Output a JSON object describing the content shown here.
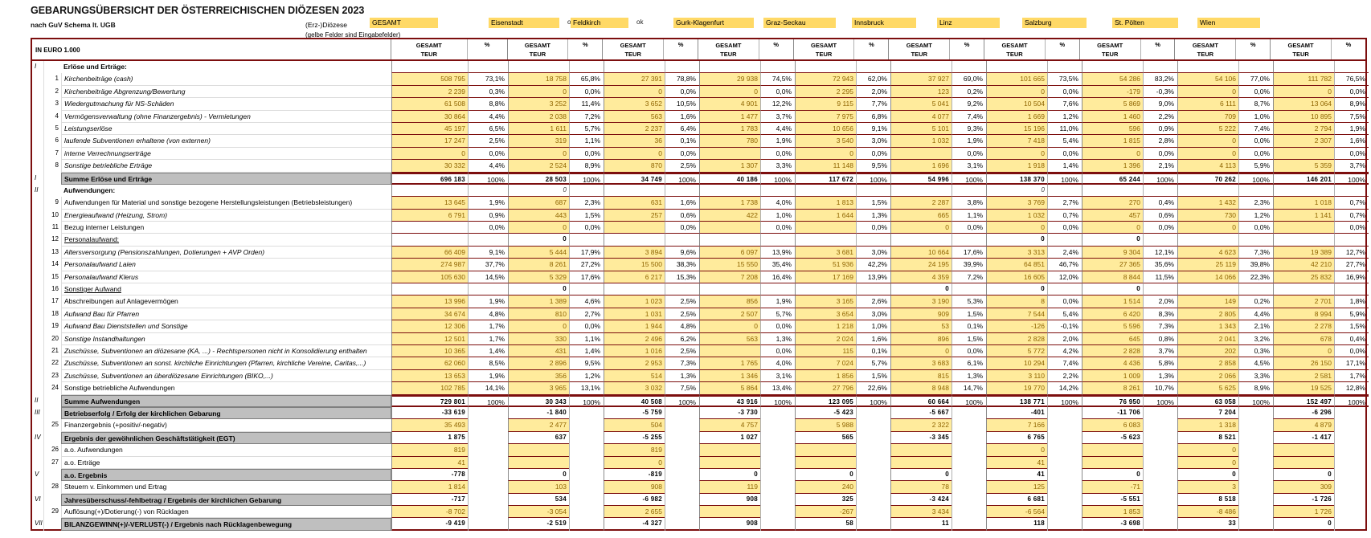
{
  "header": {
    "title": "GEBARUNGSÜBERSICHT DER ÖSTERREICHISCHEN DIÖZESEN 2023",
    "subtitle": "nach GuV Schema lt. UGB",
    "diocese_label": "(Erz-)Diözese",
    "hint": "(gelbe Felder sind Eingabefelder)",
    "unit_label": "IN EURO 1.000"
  },
  "col_header": {
    "teur_line1": "GESAMT",
    "teur_line2": "TEUR",
    "pct": "%"
  },
  "columns": [
    {
      "name": "GESAMT",
      "ok": ""
    },
    {
      "name": "Eisenstadt",
      "ok": "ok"
    },
    {
      "name": "Feldkirch",
      "ok": "ok"
    },
    {
      "name": "Gurk-Klagenfurt",
      "ok": ""
    },
    {
      "name": "Graz-Seckau",
      "ok": ""
    },
    {
      "name": "Innsbruck",
      "ok": ""
    },
    {
      "name": "Linz",
      "ok": ""
    },
    {
      "name": "Salzburg",
      "ok": ""
    },
    {
      "name": "St. Pölten",
      "ok": ""
    },
    {
      "name": "Wien",
      "ok": ""
    }
  ],
  "colors": {
    "input_fill": "#FFEB9C",
    "header_fill": "#FFD966",
    "grid_maroon": "#7C0E0E",
    "sum_fill": "#BFBFBF",
    "input_text": "#8F6400"
  },
  "rows": [
    {
      "rn": "I",
      "num": "",
      "label": "Erlöse und Erträge:",
      "t": "sec",
      "v": [
        "",
        "",
        "",
        "",
        "",
        "",
        "",
        "",
        "",
        ""
      ],
      "p": [
        "",
        "",
        "",
        "",
        "",
        "",
        "",
        "",
        "",
        ""
      ]
    },
    {
      "rn": "",
      "num": "1",
      "label": "Kirchenbeiträge (cash)",
      "t": "d",
      "it": true,
      "v": [
        "508 795",
        "18 758",
        "27 391",
        "29 938",
        "72 943",
        "37 927",
        "101 665",
        "54 286",
        "54 106",
        "111 782"
      ],
      "p": [
        "73,1%",
        "65,8%",
        "78,8%",
        "74,5%",
        "62,0%",
        "69,0%",
        "73,5%",
        "83,2%",
        "77,0%",
        "76,5%"
      ]
    },
    {
      "rn": "",
      "num": "2",
      "label": "Kirchenbeiträge Abgrenzung/Bewertung",
      "t": "d",
      "it": true,
      "v": [
        "2 239",
        "0",
        "0",
        "0",
        "2 295",
        "123",
        "0",
        "-179",
        "0",
        "0"
      ],
      "p": [
        "0,3%",
        "0,0%",
        "0,0%",
        "0,0%",
        "2,0%",
        "0,2%",
        "0,0%",
        "-0,3%",
        "0,0%",
        "0,0%"
      ]
    },
    {
      "rn": "",
      "num": "3",
      "label": "Wiedergutmachung für NS-Schäden",
      "t": "d",
      "it": true,
      "v": [
        "61 508",
        "3 252",
        "3 652",
        "4 901",
        "9 115",
        "5 041",
        "10 504",
        "5 869",
        "6 111",
        "13 064"
      ],
      "p": [
        "8,8%",
        "11,4%",
        "10,5%",
        "12,2%",
        "7,7%",
        "9,2%",
        "7,6%",
        "9,0%",
        "8,7%",
        "8,9%"
      ]
    },
    {
      "rn": "",
      "num": "4",
      "label": "Vermögensverwaltung (ohne Finanzergebnis) - Vermietungen",
      "t": "d",
      "it": true,
      "v": [
        "30 864",
        "2 038",
        "563",
        "1 477",
        "7 975",
        "4 077",
        "1 669",
        "1 460",
        "709",
        "10 895"
      ],
      "p": [
        "4,4%",
        "7,2%",
        "1,6%",
        "3,7%",
        "6,8%",
        "7,4%",
        "1,2%",
        "2,2%",
        "1,0%",
        "7,5%"
      ]
    },
    {
      "rn": "",
      "num": "5",
      "label": "Leistungserlöse",
      "t": "d",
      "it": true,
      "v": [
        "45 197",
        "1 611",
        "2 237",
        "1 783",
        "10 656",
        "5 101",
        "15 196",
        "596",
        "5 222",
        "2 794"
      ],
      "p": [
        "6,5%",
        "5,7%",
        "6,4%",
        "4,4%",
        "9,1%",
        "9,3%",
        "11,0%",
        "0,9%",
        "7,4%",
        "1,9%"
      ]
    },
    {
      "rn": "",
      "num": "6",
      "label": "laufende Subventionen erhaltene (von externen)",
      "t": "d",
      "it": true,
      "v": [
        "17 247",
        "319",
        "36",
        "780",
        "3 540",
        "1 032",
        "7 418",
        "1 815",
        "0",
        "2 307"
      ],
      "p": [
        "2,5%",
        "1,1%",
        "0,1%",
        "1,9%",
        "3,0%",
        "1,9%",
        "5,4%",
        "2,8%",
        "0,0%",
        "1,6%"
      ]
    },
    {
      "rn": "",
      "num": "7",
      "label": "interne Verrechnungserträge",
      "t": "d",
      "it": true,
      "v": [
        "0",
        "0",
        "0",
        "",
        "0",
        "",
        "0",
        "0",
        "0",
        ""
      ],
      "p": [
        "0,0%",
        "0,0%",
        "0,0%",
        "0,0%",
        "0,0%",
        "0,0%",
        "0,0%",
        "0,0%",
        "0,0%",
        "0,0%"
      ]
    },
    {
      "rn": "",
      "num": "8",
      "label": "Sonstige betriebliche Erträge",
      "t": "d",
      "it": true,
      "v": [
        "30 332",
        "2 524",
        "870",
        "1 307",
        "11 148",
        "1 696",
        "1 918",
        "1 396",
        "4 113",
        "5 359"
      ],
      "p": [
        "4,4%",
        "8,9%",
        "2,5%",
        "3,3%",
        "9,5%",
        "3,1%",
        "1,4%",
        "2,1%",
        "5,9%",
        "3,7%"
      ]
    },
    {
      "rn": "I",
      "num": "",
      "label": "Summe Erlöse und Erträge",
      "t": "sum",
      "thick": true,
      "v": [
        "696 183",
        "28 503",
        "34 749",
        "40 186",
        "117 672",
        "54 996",
        "138 370",
        "65 244",
        "70 262",
        "146 201"
      ],
      "p": [
        "100%",
        "100%",
        "100%",
        "100%",
        "100%",
        "100%",
        "100%",
        "100%",
        "100%",
        "100%"
      ]
    },
    {
      "rn": "II",
      "num": "",
      "label": "Aufwendungen:",
      "t": "sec",
      "v": [
        "",
        "0",
        "",
        "",
        "",
        "",
        "0",
        "",
        "",
        ""
      ],
      "p": [
        "",
        "",
        "",
        "",
        "",
        "",
        "",
        "",
        "",
        ""
      ]
    },
    {
      "rn": "",
      "num": "9",
      "label": "Aufwendungen für Material und sonstige bezogene Herstellungsleistungen (Betriebsleistungen)",
      "t": "d",
      "v": [
        "13 645",
        "687",
        "631",
        "1 738",
        "1 813",
        "2 287",
        "3 769",
        "270",
        "1 432",
        "1 018"
      ],
      "p": [
        "1,9%",
        "2,3%",
        "1,6%",
        "4,0%",
        "1,5%",
        "3,8%",
        "2,7%",
        "0,4%",
        "2,3%",
        "0,7%"
      ]
    },
    {
      "rn": "",
      "num": "10",
      "label": "Energieaufwand (Heizung, Strom)",
      "t": "d",
      "it": true,
      "v": [
        "6 791",
        "443",
        "257",
        "422",
        "1 644",
        "665",
        "1 032",
        "457",
        "730",
        "1 141"
      ],
      "p": [
        "0,9%",
        "1,5%",
        "0,6%",
        "1,0%",
        "1,3%",
        "1,1%",
        "0,7%",
        "0,6%",
        "1,2%",
        "0,7%"
      ]
    },
    {
      "rn": "",
      "num": "11",
      "label": "Bezug interner Leistungen",
      "t": "d",
      "wc": [
        0
      ],
      "v": [
        "",
        "0",
        "",
        "",
        "",
        "0",
        "0",
        "0",
        "0",
        ""
      ],
      "p": [
        "0,0%",
        "0,0%",
        "0,0%",
        "0,0%",
        "0,0%",
        "0,0%",
        "0,0%",
        "0,0%",
        "0,0%",
        "0,0%"
      ]
    },
    {
      "rn": "",
      "num": "12",
      "label": "Personalaufwand:",
      "t": "w",
      "ul": true,
      "v": [
        "",
        "0",
        "",
        "",
        "",
        "",
        "0",
        "0",
        "",
        ""
      ],
      "p": [
        "",
        "",
        "",
        "",
        "",
        "",
        "",
        "",
        "",
        ""
      ]
    },
    {
      "rn": "",
      "num": "13",
      "label": "Altersversorgung (Pensionszahlungen, Dotierungen + AVP Orden)",
      "t": "d",
      "it": true,
      "v": [
        "66 409",
        "5 444",
        "3 894",
        "6 097",
        "3 681",
        "10 664",
        "3 313",
        "9 304",
        "4 623",
        "19 389"
      ],
      "p": [
        "9,1%",
        "17,9%",
        "9,6%",
        "13,9%",
        "3,0%",
        "17,6%",
        "2,4%",
        "12,1%",
        "7,3%",
        "12,7%"
      ]
    },
    {
      "rn": "",
      "num": "14",
      "label": "Personalaufwand Laien",
      "t": "d",
      "it": true,
      "v": [
        "274 987",
        "8 261",
        "15 500",
        "15 550",
        "51 936",
        "24 195",
        "64 851",
        "27 365",
        "25 119",
        "42 210"
      ],
      "p": [
        "37,7%",
        "27,2%",
        "38,3%",
        "35,4%",
        "42,2%",
        "39,9%",
        "46,7%",
        "35,6%",
        "39,8%",
        "27,7%"
      ]
    },
    {
      "rn": "",
      "num": "15",
      "label": "Personalaufwand Klerus",
      "t": "d",
      "it": true,
      "v": [
        "105 630",
        "5 329",
        "6 217",
        "7 208",
        "17 169",
        "4 359",
        "16 605",
        "8 844",
        "14 066",
        "25 832"
      ],
      "p": [
        "14,5%",
        "17,6%",
        "15,3%",
        "16,4%",
        "13,9%",
        "7,2%",
        "12,0%",
        "11,5%",
        "22,3%",
        "16,9%"
      ]
    },
    {
      "rn": "",
      "num": "16",
      "label": "Sonstiger Aufwand",
      "t": "w",
      "ul": true,
      "v": [
        "",
        "0",
        "",
        "",
        "",
        "0",
        "0",
        "0",
        "",
        ""
      ],
      "p": [
        "",
        "",
        "",
        "",
        "",
        "",
        "",
        "",
        "",
        ""
      ]
    },
    {
      "rn": "",
      "num": "17",
      "label": "Abschreibungen auf Anlagevermögen",
      "t": "d",
      "v": [
        "13 996",
        "1 389",
        "1 023",
        "856",
        "3 165",
        "3 190",
        "8",
        "1 514",
        "149",
        "2 701"
      ],
      "p": [
        "1,9%",
        "4,6%",
        "2,5%",
        "1,9%",
        "2,6%",
        "5,3%",
        "0,0%",
        "2,0%",
        "0,2%",
        "1,8%"
      ]
    },
    {
      "rn": "",
      "num": "18",
      "label": "Aufwand Bau für Pfarren",
      "t": "d",
      "it": true,
      "v": [
        "34 674",
        "810",
        "1 031",
        "2 507",
        "3 654",
        "909",
        "7 544",
        "6 420",
        "2 805",
        "8 994"
      ],
      "p": [
        "4,8%",
        "2,7%",
        "2,5%",
        "5,7%",
        "3,0%",
        "1,5%",
        "5,4%",
        "8,3%",
        "4,4%",
        "5,9%"
      ]
    },
    {
      "rn": "",
      "num": "19",
      "label": "Aufwand Bau Dienststellen und Sonstige",
      "t": "d",
      "it": true,
      "v": [
        "12 306",
        "0",
        "1 944",
        "0",
        "1 218",
        "53",
        "-126",
        "5 596",
        "1 343",
        "2 278"
      ],
      "p": [
        "1,7%",
        "0,0%",
        "4,8%",
        "0,0%",
        "1,0%",
        "0,1%",
        "-0,1%",
        "7,3%",
        "2,1%",
        "1,5%"
      ]
    },
    {
      "rn": "",
      "num": "20",
      "label": "Sonstige Instandhaltungen",
      "t": "d",
      "it": true,
      "v": [
        "12 501",
        "330",
        "2 496",
        "563",
        "2 024",
        "896",
        "2 828",
        "645",
        "2 041",
        "678"
      ],
      "p": [
        "1,7%",
        "1,1%",
        "6,2%",
        "1,3%",
        "1,6%",
        "1,5%",
        "2,0%",
        "0,8%",
        "3,2%",
        "0,4%"
      ]
    },
    {
      "rn": "",
      "num": "21",
      "label": "Zuschüsse, Subventionen an diözesane (KA, ...) - Rechtspersonen nicht in Konsolidierung enthalten",
      "t": "d",
      "it": true,
      "v": [
        "10 365",
        "431",
        "1 016",
        "",
        "115",
        "0",
        "5 772",
        "2 828",
        "202",
        "0"
      ],
      "p": [
        "1,4%",
        "1,4%",
        "2,5%",
        "0,0%",
        "0,1%",
        "0,0%",
        "4,2%",
        "3,7%",
        "0,3%",
        "0,0%"
      ]
    },
    {
      "rn": "",
      "num": "22",
      "label": "Zuschüsse, Subventionen an sonst. kirchliche Einrichtungen (Pfarren, kirchliche Vereine, Caritas,...)",
      "t": "d",
      "it": true,
      "v": [
        "62 060",
        "2 896",
        "2 953",
        "1 765",
        "7 024",
        "3 683",
        "10 294",
        "4 436",
        "2 858",
        "26 150"
      ],
      "p": [
        "8,5%",
        "9,5%",
        "7,3%",
        "4,0%",
        "5,7%",
        "6,1%",
        "7,4%",
        "5,8%",
        "4,5%",
        "17,1%"
      ]
    },
    {
      "rn": "",
      "num": "23",
      "label": "Zuschüsse, Subventionen an überdiözesane Einrichtungen (BIKO,...)",
      "t": "d",
      "it": true,
      "v": [
        "13 653",
        "356",
        "514",
        "1 346",
        "1 856",
        "815",
        "3 110",
        "1 009",
        "2 066",
        "2 581"
      ],
      "p": [
        "1,9%",
        "1,2%",
        "1,3%",
        "3,1%",
        "1,5%",
        "1,3%",
        "2,2%",
        "1,3%",
        "3,3%",
        "1,7%"
      ]
    },
    {
      "rn": "",
      "num": "24",
      "label": "Sonstige betriebliche Aufwendungen",
      "t": "d",
      "v": [
        "102 785",
        "3 965",
        "3 032",
        "5 864",
        "27 796",
        "8 948",
        "19 770",
        "8 261",
        "5 625",
        "19 525"
      ],
      "p": [
        "14,1%",
        "13,1%",
        "7,5%",
        "13,4%",
        "22,6%",
        "14,7%",
        "14,2%",
        "10,7%",
        "8,9%",
        "12,8%"
      ]
    },
    {
      "rn": "II",
      "num": "",
      "label": "Summe Aufwendungen",
      "t": "sum",
      "thick": true,
      "v": [
        "729 801",
        "30 343",
        "40 508",
        "43 916",
        "123 095",
        "60 664",
        "138 771",
        "76 950",
        "63 058",
        "152 497"
      ],
      "p": [
        "100%",
        "100%",
        "100%",
        "100%",
        "100%",
        "100%",
        "100%",
        "100%",
        "100%",
        "100%"
      ]
    },
    {
      "rn": "III",
      "num": "",
      "label": "Betriebserfolg / Erfolg der kirchlichen Gebarung",
      "t": "sum",
      "v": [
        "-33 619",
        "-1 840",
        "-5 759",
        "-3 730",
        "-5 423",
        "-5 667",
        "-401",
        "-11 706",
        "7 204",
        "-6 296"
      ],
      "p": [
        "",
        "",
        "",
        "",
        "",
        "",
        "",
        "",
        "",
        ""
      ]
    },
    {
      "rn": "",
      "num": "25",
      "label": "Finanzergebnis (+positiv/-negativ)",
      "t": "y2",
      "v": [
        "35 493",
        "2 477",
        "504",
        "4 757",
        "5 988",
        "2 322",
        "7 166",
        "6 083",
        "1 318",
        "4 879"
      ],
      "p": [
        "",
        "",
        "",
        "",
        "",
        "",
        "",
        "",
        "",
        ""
      ]
    },
    {
      "rn": "IV",
      "num": "",
      "label": "Ergebnis der gewöhnlichen Geschäftstätigkeit (EGT)",
      "t": "sum",
      "v": [
        "1 875",
        "637",
        "-5 255",
        "1 027",
        "565",
        "-3 345",
        "6 765",
        "-5 623",
        "8 521",
        "-1 417"
      ],
      "p": [
        "",
        "",
        "",
        "",
        "",
        "",
        "",
        "",
        "",
        ""
      ]
    },
    {
      "rn": "",
      "num": "26",
      "label": "a.o. Aufwendungen",
      "t": "y2",
      "v": [
        "819",
        "",
        "819",
        "",
        "",
        "",
        "0",
        "",
        "0",
        ""
      ],
      "p": [
        "",
        "",
        "",
        "",
        "",
        "",
        "",
        "",
        "",
        ""
      ]
    },
    {
      "rn": "",
      "num": "27",
      "label": "a.o. Erträge",
      "t": "y2",
      "v": [
        "41",
        "",
        "0",
        "",
        "",
        "",
        "41",
        "",
        "0",
        ""
      ],
      "p": [
        "",
        "",
        "",
        "",
        "",
        "",
        "",
        "",
        "",
        ""
      ]
    },
    {
      "rn": "V",
      "num": "",
      "label": "a.o. Ergebnis",
      "t": "sum",
      "v": [
        "-778",
        "0",
        "-819",
        "0",
        "0",
        "0",
        "41",
        "0",
        "0",
        "0"
      ],
      "p": [
        "",
        "",
        "",
        "",
        "",
        "",
        "",
        "",
        "",
        ""
      ]
    },
    {
      "rn": "",
      "num": "28",
      "label": "Steuern v. Einkommen und Ertrag",
      "t": "y2",
      "v": [
        "1 814",
        "103",
        "908",
        "119",
        "240",
        "78",
        "125",
        "-71",
        "3",
        "309"
      ],
      "p": [
        "",
        "",
        "",
        "",
        "",
        "",
        "",
        "",
        "",
        ""
      ]
    },
    {
      "rn": "VI",
      "num": "",
      "label": "Jahresüberschuss/-fehlbetrag / Ergebnis der kirchlichen Gebarung",
      "t": "sum",
      "v": [
        "-717",
        "534",
        "-6 982",
        "908",
        "325",
        "-3 424",
        "6 681",
        "-5 551",
        "8 518",
        "-1 726"
      ],
      "p": [
        "",
        "",
        "",
        "",
        "",
        "",
        "",
        "",
        "",
        ""
      ]
    },
    {
      "rn": "",
      "num": "29",
      "label": "Auflösung(+)/Dotierung(-) von Rücklagen",
      "t": "y2",
      "v": [
        "-8 702",
        "-3 054",
        "2 655",
        "",
        "-267",
        "3 434",
        "-6 564",
        "1 853",
        "-8 486",
        "1 726"
      ],
      "p": [
        "",
        "",
        "",
        "",
        "",
        "",
        "",
        "",
        "",
        ""
      ]
    },
    {
      "rn": "VII",
      "num": "",
      "label": "BILANZGEWINN(+)/-VERLUST(-) / Ergebnis nach Rücklagenbewegung",
      "t": "sum",
      "v": [
        "-9 419",
        "-2 519",
        "-4 327",
        "908",
        "58",
        "11",
        "118",
        "-3 698",
        "33",
        "0"
      ],
      "p": [
        "",
        "",
        "",
        "",
        "",
        "",
        "",
        "",
        "",
        ""
      ]
    }
  ]
}
